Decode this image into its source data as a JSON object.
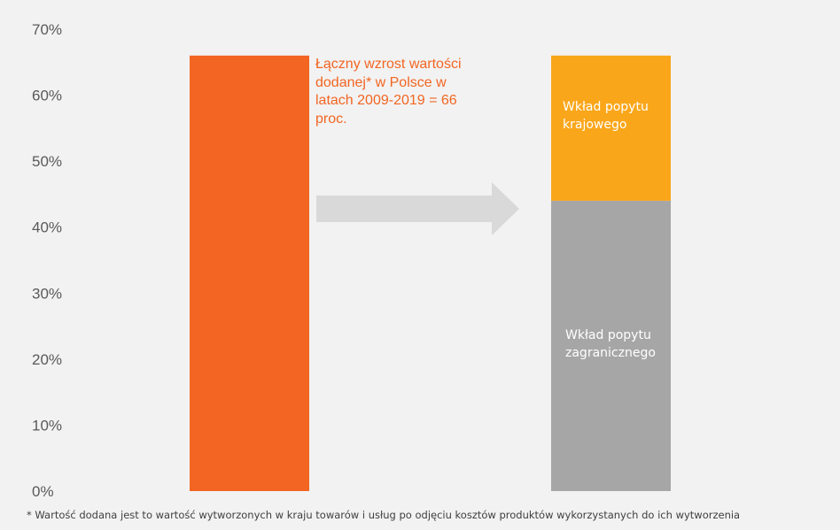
{
  "chart_data": {
    "type": "bar",
    "ylim": [
      0,
      70
    ],
    "y_ticks": [
      "70%",
      "60%",
      "50%",
      "40%",
      "30%",
      "20%",
      "10%",
      "0%"
    ],
    "y_tick_values": [
      70,
      60,
      50,
      40,
      30,
      20,
      10,
      0
    ],
    "grid": false,
    "bars": [
      {
        "name": "total",
        "segments": [
          {
            "value": 66,
            "color": "#f26522"
          }
        ]
      },
      {
        "name": "decomposition",
        "segments": [
          {
            "value": 44,
            "color": "#a6a6a6",
            "label": "Wkład popytu\nzagranicznego"
          },
          {
            "value": 22,
            "color": "#faa61a",
            "label": "Wkład popytu\nkrajowego"
          }
        ]
      }
    ],
    "arrow_color": "#d9d9d9",
    "annotation": "Łączny wzrost  wartości\ndodanej* w Polsce w\nlatach 2009-2019 = 66\nproc."
  },
  "footnote": "* Wartość dodana jest to wartość wytworzonych w kraju towarów i usług po odjęciu kosztów produktów wykorzystanych do ich wytworzenia"
}
